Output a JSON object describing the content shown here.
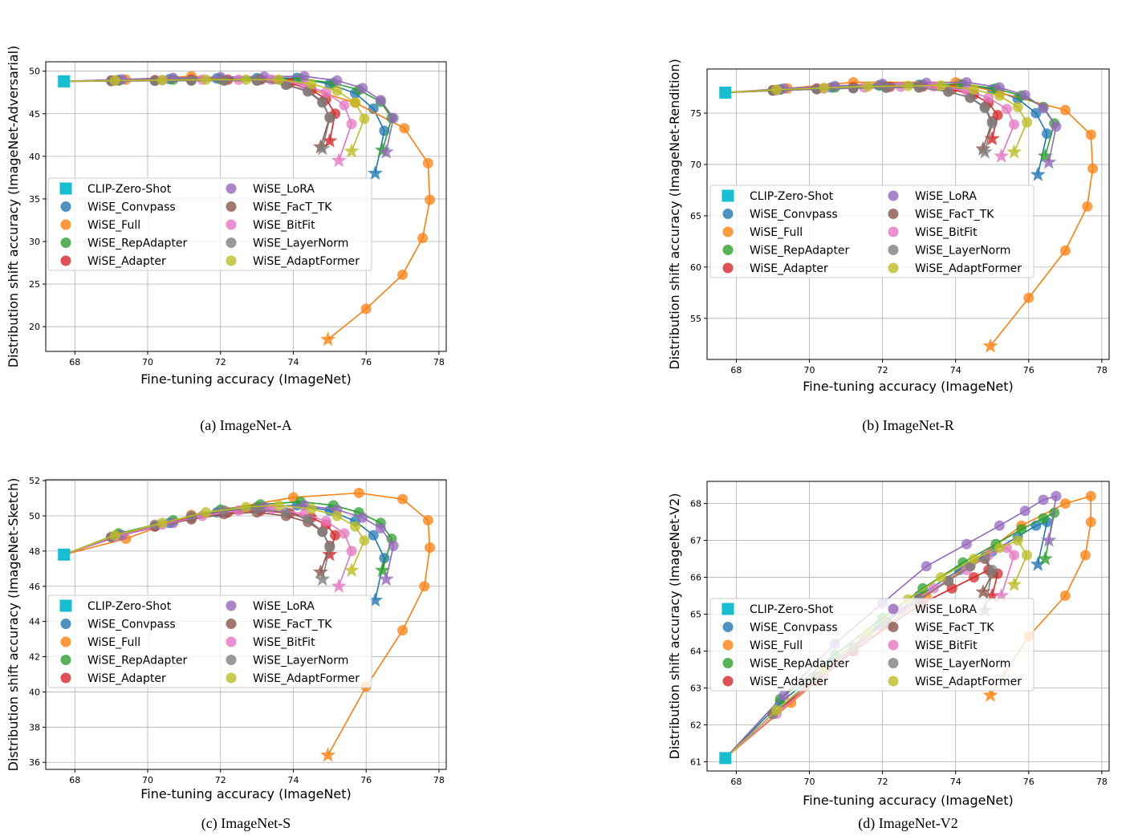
{
  "colors": {
    "CLIP-Zero-Shot": "#17becf",
    "WiSE_Convpass": "#1f77b4",
    "WiSE_Full": "#ff7f0e",
    "WiSE_RepAdapter": "#2ca02c",
    "WiSE_Adapter": "#d62728",
    "WiSE_LoRA": "#9467bd",
    "WiSE_FacT_TK": "#8c564b",
    "WiSE_BitFit": "#e377c2",
    "WiSE_LayerNorm": "#7f7f7f",
    "WiSE_AdaptFormer": "#bcbd22"
  },
  "legend_order": [
    "CLIP-Zero-Shot",
    "WiSE_Convpass",
    "WiSE_Full",
    "WiSE_RepAdapter",
    "WiSE_Adapter",
    "WiSE_LoRA",
    "WiSE_FacT_TK",
    "WiSE_BitFit",
    "WiSE_LayerNorm",
    "WiSE_AdaptFormer"
  ],
  "x_series": {
    "WiSE_Convpass": [
      67.7,
      69.2,
      70.6,
      71.9,
      73.0,
      74.1,
      75.0,
      75.7,
      76.2,
      76.5,
      76.25
    ],
    "WiSE_RepAdapter": [
      67.7,
      69.2,
      70.7,
      72.0,
      73.1,
      74.2,
      75.1,
      75.8,
      76.4,
      76.7,
      76.45
    ],
    "WiSE_Adapter": [
      67.7,
      69.0,
      70.2,
      71.2,
      72.2,
      73.1,
      73.9,
      74.5,
      74.9,
      75.15,
      75.0
    ],
    "WiSE_LoRA": [
      67.7,
      69.3,
      70.7,
      72.0,
      73.2,
      74.3,
      75.2,
      75.9,
      76.4,
      76.75,
      76.55
    ],
    "WiSE_FacT_TK": [
      67.7,
      69.0,
      70.2,
      71.2,
      72.1,
      73.0,
      73.8,
      74.4,
      74.8,
      75.0,
      74.75
    ],
    "WiSE_BitFit": [
      67.7,
      69.1,
      70.4,
      71.5,
      72.5,
      73.4,
      74.3,
      74.9,
      75.4,
      75.6,
      75.25
    ],
    "WiSE_LayerNorm": [
      67.7,
      69.0,
      70.2,
      71.2,
      72.1,
      73.0,
      73.8,
      74.4,
      74.8,
      75.0,
      74.8
    ],
    "WiSE_AdaptFormer": [
      67.7,
      69.1,
      70.4,
      71.6,
      72.7,
      73.6,
      74.5,
      75.2,
      75.7,
      75.95,
      75.6
    ]
  },
  "chart_data": [
    {
      "type": "line",
      "caption": "(a) ImageNet-A",
      "xlabel": "Fine-tuning accuracy (ImageNet)",
      "ylabel": "Distribution shift accuracy (ImageNet-Adversarial)",
      "xlim": [
        67.2,
        78.2
      ],
      "ylim": [
        17.1,
        51.1
      ],
      "xticks": [
        68,
        70,
        72,
        74,
        76,
        78
      ],
      "yticks": [
        20,
        25,
        30,
        35,
        40,
        45,
        50
      ],
      "grid": true,
      "legend": "lower-left",
      "zero_shot": [
        67.7,
        48.8
      ],
      "full": {
        "x": [
          67.7,
          69.4,
          71.2,
          73.9,
          75.7,
          77.05,
          77.7,
          77.75,
          77.55,
          77.0,
          76.0,
          74.95
        ],
        "y": [
          48.8,
          49.0,
          49.4,
          48.6,
          46.3,
          43.3,
          39.2,
          34.9,
          30.4,
          26.1,
          22.1,
          18.5
        ]
      },
      "y_series": {
        "WiSE_Convpass": [
          48.8,
          48.96,
          49.06,
          49.14,
          49.18,
          49.2,
          48.5,
          47.4,
          45.6,
          43.0,
          38.0
        ],
        "WiSE_RepAdapter": [
          48.8,
          48.9,
          49.0,
          49.05,
          49.1,
          49.1,
          48.6,
          47.8,
          46.4,
          44.5,
          40.7
        ],
        "WiSE_Adapter": [
          48.8,
          48.9,
          48.95,
          49.0,
          49.0,
          49.0,
          48.6,
          47.8,
          46.7,
          45.0,
          41.8
        ],
        "WiSE_LoRA": [
          48.8,
          49.04,
          49.2,
          49.3,
          49.37,
          49.4,
          48.9,
          48.0,
          46.6,
          44.5,
          40.5
        ],
        "WiSE_FacT_TK": [
          48.8,
          48.84,
          48.87,
          48.9,
          48.9,
          48.9,
          48.4,
          47.7,
          46.4,
          44.6,
          41.1
        ],
        "WiSE_BitFit": [
          48.8,
          48.9,
          48.95,
          49.0,
          49.0,
          49.0,
          48.4,
          47.5,
          46.0,
          43.8,
          39.5
        ],
        "WiSE_LayerNorm": [
          48.8,
          48.84,
          48.87,
          48.9,
          48.9,
          48.9,
          48.4,
          47.6,
          46.3,
          44.5,
          40.9
        ],
        "WiSE_AdaptFormer": [
          48.8,
          48.9,
          48.95,
          49.0,
          49.0,
          49.0,
          48.5,
          47.7,
          46.3,
          44.4,
          40.6
        ]
      }
    },
    {
      "type": "line",
      "caption": "(b) ImageNet-R",
      "xlabel": "Fine-tuning accuracy (ImageNet)",
      "ylabel": "Distribution shift accuracy (ImageNet-Rendition)",
      "xlim": [
        67.2,
        78.2
      ],
      "ylim": [
        51.0,
        79.3
      ],
      "xticks": [
        68,
        70,
        72,
        74,
        76,
        78
      ],
      "yticks": [
        55,
        60,
        65,
        70,
        75
      ],
      "grid": true,
      "legend": "center-left",
      "zero_shot": [
        67.7,
        77.0
      ],
      "full": {
        "x": [
          67.7,
          69.4,
          71.2,
          74.0,
          75.2,
          77.0,
          77.7,
          77.75,
          77.6,
          77.0,
          76.0,
          74.95
        ],
        "y": [
          77.0,
          77.4,
          78.0,
          78.0,
          77.0,
          75.3,
          72.9,
          69.6,
          65.9,
          61.6,
          57.0,
          52.3
        ]
      },
      "y_series": {
        "WiSE_Convpass": [
          77.0,
          77.3,
          77.5,
          77.7,
          77.76,
          77.8,
          77.3,
          76.4,
          75.0,
          73.0,
          69.0
        ],
        "WiSE_RepAdapter": [
          77.0,
          77.3,
          77.5,
          77.7,
          77.76,
          77.8,
          77.4,
          76.7,
          75.6,
          74.0,
          70.8
        ],
        "WiSE_Adapter": [
          77.0,
          77.24,
          77.4,
          77.5,
          77.57,
          77.6,
          77.3,
          76.8,
          76.0,
          74.8,
          72.5
        ],
        "WiSE_LoRA": [
          77.0,
          77.4,
          77.65,
          77.85,
          77.95,
          78.0,
          77.5,
          76.75,
          75.5,
          73.7,
          70.2
        ],
        "WiSE_FacT_TK": [
          77.0,
          77.2,
          77.33,
          77.43,
          77.48,
          77.5,
          77.1,
          76.5,
          75.6,
          74.2,
          71.5
        ],
        "WiSE_BitFit": [
          77.0,
          77.24,
          77.4,
          77.5,
          77.57,
          77.6,
          77.2,
          76.5,
          75.4,
          73.9,
          70.8
        ],
        "WiSE_LayerNorm": [
          77.0,
          77.2,
          77.33,
          77.43,
          77.48,
          77.5,
          77.1,
          76.5,
          75.5,
          74.0,
          71.2
        ],
        "WiSE_AdaptFormer": [
          77.0,
          77.28,
          77.46,
          77.6,
          77.66,
          77.7,
          77.3,
          76.7,
          75.6,
          74.1,
          71.2
        ]
      }
    },
    {
      "type": "line",
      "caption": "(c) ImageNet-S",
      "xlabel": "Fine-tuning accuracy (ImageNet)",
      "ylabel": "Distribution shift accuracy (ImageNet-Sketch)",
      "xlim": [
        67.2,
        78.2
      ],
      "ylim": [
        35.6,
        52.05
      ],
      "xticks": [
        68,
        70,
        72,
        74,
        76,
        78
      ],
      "yticks": [
        36,
        38,
        40,
        42,
        44,
        46,
        48,
        50,
        52
      ],
      "grid": true,
      "legend": "lower-left",
      "zero_shot": [
        67.7,
        47.8
      ],
      "full": {
        "x": [
          67.7,
          69.4,
          71.2,
          74.0,
          75.8,
          77.0,
          77.7,
          77.75,
          77.6,
          77.0,
          76.0,
          74.95
        ],
        "y": [
          47.8,
          48.7,
          50.05,
          51.05,
          51.3,
          50.95,
          49.75,
          48.2,
          46.0,
          43.5,
          40.3,
          36.4
        ]
      },
      "y_series": {
        "WiSE_Convpass": [
          47.8,
          48.9,
          49.6,
          50.2,
          50.5,
          50.6,
          50.3,
          49.7,
          48.9,
          47.6,
          45.2
        ],
        "WiSE_RepAdapter": [
          47.8,
          49.0,
          49.75,
          50.35,
          50.65,
          50.8,
          50.6,
          50.2,
          49.6,
          48.7,
          46.9
        ],
        "WiSE_Adapter": [
          47.8,
          48.8,
          49.4,
          49.9,
          50.2,
          50.3,
          50.15,
          49.9,
          49.5,
          48.9,
          47.8
        ],
        "WiSE_LoRA": [
          47.8,
          48.9,
          49.6,
          50.2,
          50.5,
          50.6,
          50.35,
          49.9,
          49.3,
          48.3,
          46.4
        ],
        "WiSE_FacT_TK": [
          47.8,
          48.8,
          49.4,
          49.8,
          50.1,
          50.2,
          50.0,
          49.65,
          49.1,
          48.3,
          46.8
        ],
        "WiSE_BitFit": [
          47.8,
          48.8,
          49.5,
          50.0,
          50.3,
          50.4,
          50.1,
          49.7,
          49.0,
          48.0,
          46.0
        ],
        "WiSE_LayerNorm": [
          47.8,
          48.8,
          49.5,
          50.0,
          50.3,
          50.4,
          50.2,
          49.8,
          49.1,
          48.2,
          46.4
        ],
        "WiSE_AdaptFormer": [
          47.8,
          48.9,
          49.6,
          50.2,
          50.5,
          50.6,
          50.4,
          50.0,
          49.4,
          48.6,
          46.9
        ]
      }
    },
    {
      "type": "line",
      "caption": "(d) ImageNet-V2",
      "xlabel": "Fine-tuning accuracy (ImageNet)",
      "ylabel": "Distribution shift accuracy (ImageNet-V2)",
      "xlim": [
        67.2,
        78.2
      ],
      "ylim": [
        60.75,
        68.6
      ],
      "xticks": [
        68,
        70,
        72,
        74,
        76,
        78
      ],
      "yticks": [
        61,
        62,
        63,
        64,
        65,
        66,
        67,
        68
      ],
      "grid": true,
      "legend": "lower-left",
      "zero_shot": [
        67.7,
        61.1
      ],
      "full": {
        "x": [
          67.7,
          69.5,
          71.2,
          73.2,
          75.8,
          77.0,
          77.7,
          77.7,
          77.55,
          77.0,
          76.0,
          74.95
        ],
        "y": [
          61.1,
          62.6,
          64.0,
          65.5,
          67.4,
          68.0,
          68.2,
          67.5,
          66.6,
          65.5,
          64.4,
          62.8
        ]
      },
      "y_series": {
        "WiSE_Convpass": [
          61.1,
          62.6,
          63.7,
          64.7,
          65.5,
          66.2,
          66.7,
          67.1,
          67.4,
          67.5,
          66.35
        ],
        "WiSE_RepAdapter": [
          61.1,
          62.7,
          63.9,
          64.9,
          65.7,
          66.4,
          66.9,
          67.3,
          67.6,
          67.75,
          66.5
        ],
        "WiSE_Adapter": [
          61.1,
          62.3,
          63.2,
          64.0,
          64.7,
          65.3,
          65.7,
          66.0,
          66.2,
          66.1,
          65.5
        ],
        "WiSE_LoRA": [
          61.1,
          62.8,
          64.2,
          65.3,
          66.3,
          66.9,
          67.4,
          67.8,
          68.1,
          68.2,
          67.0
        ],
        "WiSE_FacT_TK": [
          61.1,
          62.3,
          63.3,
          64.1,
          64.8,
          65.4,
          65.9,
          66.3,
          66.5,
          66.1,
          65.6
        ],
        "WiSE_BitFit": [
          61.1,
          62.3,
          63.4,
          64.3,
          65.1,
          65.7,
          66.2,
          66.6,
          66.8,
          66.6,
          65.5
        ],
        "WiSE_LayerNorm": [
          61.1,
          62.3,
          63.3,
          64.1,
          64.8,
          65.4,
          65.9,
          66.3,
          66.55,
          66.2,
          65.1
        ],
        "WiSE_AdaptFormer": [
          61.1,
          62.4,
          63.5,
          64.5,
          65.4,
          66.0,
          66.5,
          66.8,
          67.0,
          66.6,
          65.8
        ]
      }
    }
  ]
}
